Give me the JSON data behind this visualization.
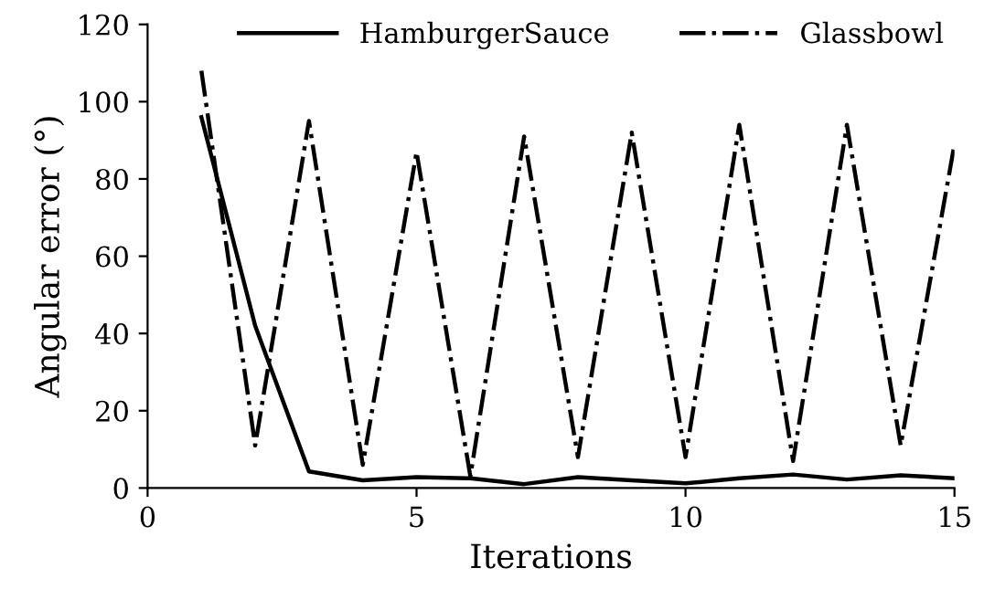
{
  "chart_data": {
    "type": "line",
    "xlabel": "Iterations",
    "ylabel": "Angular error (°)",
    "x": [
      1,
      2,
      3,
      4,
      5,
      6,
      7,
      8,
      9,
      10,
      11,
      12,
      13,
      14,
      15
    ],
    "series": [
      {
        "name": "HamburgerSauce",
        "color": "#000000",
        "line_style": "solid",
        "values": [
          96,
          42,
          4.3,
          2,
          2.8,
          2.5,
          1,
          2.8,
          2,
          1.2,
          2.5,
          3.5,
          2.2,
          3.3,
          2.5
        ]
      },
      {
        "name": "Glassbowl",
        "color": "#000000",
        "line_style": "dashdot",
        "values": [
          108,
          11,
          95,
          6,
          87,
          3,
          91,
          8,
          92,
          8,
          94,
          7,
          94,
          11,
          89
        ]
      }
    ],
    "xlim": [
      0,
      15
    ],
    "ylim": [
      0,
      120
    ],
    "xticks": [
      0,
      5,
      10,
      15
    ],
    "yticks": [
      0,
      20,
      40,
      60,
      80,
      100,
      120
    ],
    "grid": false,
    "legend": "top",
    "marker": "none"
  }
}
